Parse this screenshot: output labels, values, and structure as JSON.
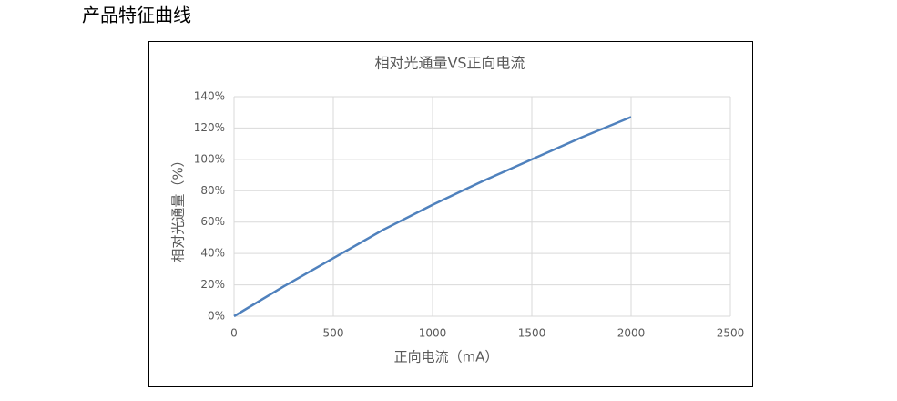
{
  "heading": "产品特征曲线",
  "chart_data": {
    "type": "line",
    "title": "相对光通量VS正向电流",
    "x_label": "正向电流（mA）",
    "y_label": "相对光通量（%）",
    "x": [
      0,
      250,
      500,
      750,
      1000,
      1250,
      1500,
      1750,
      2000
    ],
    "values": [
      0,
      19,
      37,
      55,
      71,
      86,
      100,
      114,
      127
    ],
    "color": "#4f81bd",
    "xlim": [
      0,
      2500
    ],
    "xticks": [
      0,
      500,
      1000,
      1500,
      2000,
      2500
    ],
    "ylim": [
      0,
      140
    ],
    "yticks": [
      {
        "value": 0,
        "label": "0%"
      },
      {
        "value": 20,
        "label": "20%"
      },
      {
        "value": 40,
        "label": "40%"
      },
      {
        "value": 60,
        "label": "60%"
      },
      {
        "value": 80,
        "label": "80%"
      },
      {
        "value": 100,
        "label": "100%"
      },
      {
        "value": 120,
        "label": "120%"
      },
      {
        "value": 140,
        "label": "140%"
      }
    ],
    "grid": true
  }
}
